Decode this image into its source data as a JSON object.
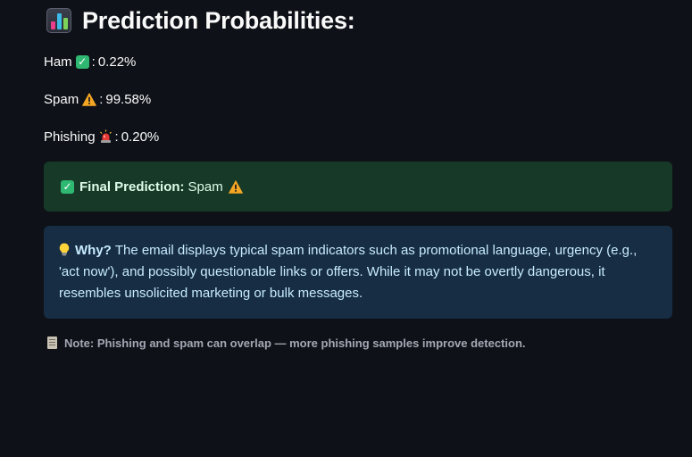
{
  "heading": {
    "icon": "bar-chart-icon",
    "title": "Prediction Probabilities:"
  },
  "probabilities": [
    {
      "label": "Ham",
      "icon": "check-mark-icon",
      "separator": ":",
      "value": "0.22%"
    },
    {
      "label": "Spam",
      "icon": "warning-icon",
      "separator": ":",
      "value": "99.58%"
    },
    {
      "label": "Phishing",
      "icon": "siren-icon",
      "separator": ":",
      "value": "0.20%"
    }
  ],
  "final_prediction": {
    "icon": "check-mark-icon",
    "label": "Final Prediction:",
    "value": "Spam",
    "value_icon": "warning-icon",
    "background_color": "#173928",
    "text_color": "#dffde9"
  },
  "explanation": {
    "icon": "light-bulb-icon",
    "label": "Why?",
    "text": "The email displays typical spam indicators such as promotional language, urgency (e.g., 'act now'), and possibly questionable links or offers. While it may not be overtly dangerous, it resembles unsolicited marketing or bulk messages.",
    "background_color": "#172d43",
    "text_color": "#c7ebff"
  },
  "note": {
    "icon": "memo-icon",
    "text": "Note: Phishing and spam can overlap — more phishing samples improve detection."
  }
}
